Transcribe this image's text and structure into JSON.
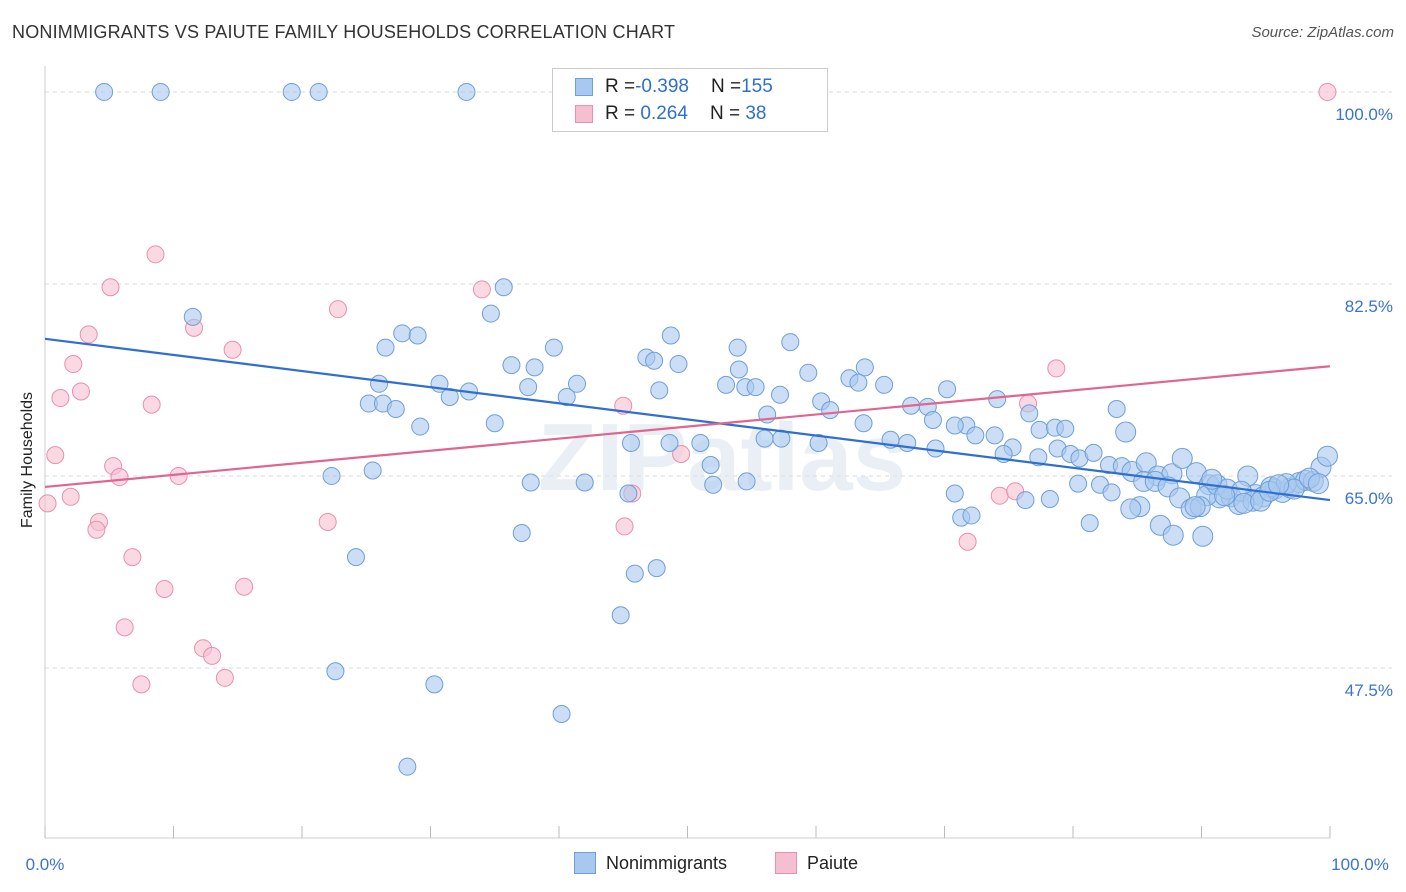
{
  "title": "NONIMMIGRANTS VS PAIUTE FAMILY HOUSEHOLDS CORRELATION CHART",
  "source": "Source: ZipAtlas.com",
  "watermark": "ZIPatlas",
  "colors": {
    "blue_fill": "#a9c8ef",
    "blue_stroke": "#6f9fd8",
    "blue_line": "#2e6fd1",
    "pink_fill": "#f6bfd0",
    "pink_stroke": "#e990ac",
    "pink_line": "#e0668f",
    "tick_text": "#3a74cf",
    "grid": "#d9d9d9"
  },
  "legend": {
    "rows": [
      {
        "r_label": "R = ",
        "r_value": "-0.398",
        "n_label": "N = ",
        "n_value": "155"
      },
      {
        "r_label": "R = ",
        "r_value": " 0.264",
        "n_label": "N = ",
        "n_value": " 38"
      }
    ],
    "series_names": [
      "Nonimmigrants",
      "Paiute"
    ]
  },
  "chart_data": {
    "type": "scatter",
    "title": "NONIMMIGRANTS VS PAIUTE FAMILY HOUSEHOLDS CORRELATION CHART",
    "xlabel": "",
    "ylabel": "Family Households",
    "xlim": [
      0,
      100
    ],
    "ylim": [
      32,
      102
    ],
    "x_tick_labels": [
      "0.0%",
      "100.0%"
    ],
    "y_ticks": [
      47.5,
      65.0,
      82.5,
      100.0
    ],
    "y_tick_labels": [
      "47.5%",
      "65.0%",
      "82.5%",
      "100.0%"
    ],
    "grid": "horizontal dashed",
    "legend_placement": "top-center",
    "series": [
      {
        "name": "Nonimmigrants",
        "r": -0.398,
        "n": 155,
        "trend": [
          [
            0,
            77.5
          ],
          [
            100,
            62.8
          ]
        ],
        "points": [
          [
            4.6,
            100
          ],
          [
            9.0,
            100
          ],
          [
            19.2,
            100
          ],
          [
            21.3,
            100
          ],
          [
            32.8,
            100
          ],
          [
            11.5,
            79.5
          ],
          [
            34.7,
            79.8
          ],
          [
            35.7,
            82.2
          ],
          [
            27.8,
            78.0
          ],
          [
            29.0,
            77.8
          ],
          [
            26.5,
            76.7
          ],
          [
            39.6,
            76.7
          ],
          [
            46.8,
            75.8
          ],
          [
            47.4,
            75.5
          ],
          [
            49.3,
            75.2
          ],
          [
            48.7,
            77.8
          ],
          [
            58.0,
            77.2
          ],
          [
            53.9,
            76.7
          ],
          [
            36.3,
            75.1
          ],
          [
            38.1,
            74.9
          ],
          [
            54.0,
            74.7
          ],
          [
            59.4,
            74.4
          ],
          [
            63.8,
            74.9
          ],
          [
            47.8,
            72.8
          ],
          [
            41.4,
            73.4
          ],
          [
            26.0,
            73.4
          ],
          [
            30.7,
            73.4
          ],
          [
            33.0,
            72.7
          ],
          [
            37.6,
            73.1
          ],
          [
            31.5,
            72.2
          ],
          [
            53.0,
            73.3
          ],
          [
            54.5,
            73.1
          ],
          [
            55.3,
            73.1
          ],
          [
            57.2,
            72.4
          ],
          [
            56.2,
            70.6
          ],
          [
            60.4,
            71.8
          ],
          [
            62.6,
            73.9
          ],
          [
            63.3,
            73.5
          ],
          [
            65.3,
            73.3
          ],
          [
            67.4,
            71.4
          ],
          [
            68.7,
            71.3
          ],
          [
            70.2,
            72.9
          ],
          [
            74.1,
            72.0
          ],
          [
            76.6,
            70.7
          ],
          [
            83.4,
            71.1
          ],
          [
            71.7,
            69.6
          ],
          [
            69.1,
            70.1
          ],
          [
            70.8,
            69.6
          ],
          [
            72.4,
            68.7
          ],
          [
            73.9,
            68.7
          ],
          [
            75.3,
            67.6
          ],
          [
            77.4,
            69.2
          ],
          [
            78.6,
            69.4
          ],
          [
            79.4,
            69.3
          ],
          [
            25.2,
            71.6
          ],
          [
            26.3,
            71.6
          ],
          [
            27.3,
            71.1
          ],
          [
            29.2,
            69.5
          ],
          [
            35.0,
            69.8
          ],
          [
            40.6,
            72.2
          ],
          [
            45.6,
            68.0
          ],
          [
            51.8,
            66.0
          ],
          [
            56.0,
            68.4
          ],
          [
            57.3,
            68.4
          ],
          [
            60.2,
            68.0
          ],
          [
            61.1,
            71.0
          ],
          [
            63.7,
            69.8
          ],
          [
            65.8,
            68.3
          ],
          [
            67.1,
            68.0
          ],
          [
            69.3,
            67.5
          ],
          [
            51.0,
            68.0
          ],
          [
            48.6,
            68.0
          ],
          [
            22.3,
            65.0
          ],
          [
            25.5,
            65.5
          ],
          [
            37.8,
            64.4
          ],
          [
            42.0,
            64.4
          ],
          [
            45.4,
            63.4
          ],
          [
            52.0,
            64.2
          ],
          [
            54.6,
            64.5
          ],
          [
            84.1,
            69.0
          ],
          [
            74.6,
            67.0
          ],
          [
            77.3,
            66.7
          ],
          [
            78.8,
            67.5
          ],
          [
            79.8,
            67.0
          ],
          [
            80.5,
            66.6
          ],
          [
            81.6,
            67.1
          ],
          [
            82.8,
            66.0
          ],
          [
            83.8,
            65.9
          ],
          [
            84.6,
            65.4
          ],
          [
            85.7,
            66.2
          ],
          [
            86.6,
            65.0
          ],
          [
            87.7,
            65.2
          ],
          [
            88.5,
            66.6
          ],
          [
            89.6,
            65.3
          ],
          [
            90.6,
            64.2
          ],
          [
            91.4,
            63.0
          ],
          [
            92.3,
            63.1
          ],
          [
            92.9,
            62.4
          ],
          [
            93.6,
            65.0
          ],
          [
            94.2,
            63.3
          ],
          [
            94.8,
            63.1
          ],
          [
            95.7,
            63.8
          ],
          [
            96.3,
            63.5
          ],
          [
            96.9,
            63.9
          ],
          [
            97.6,
            64.4
          ],
          [
            98.1,
            64.6
          ],
          [
            98.7,
            64.5
          ],
          [
            99.3,
            65.8
          ],
          [
            99.8,
            66.8
          ],
          [
            90.4,
            63.2
          ],
          [
            91.2,
            64.2
          ],
          [
            92.0,
            63.8
          ],
          [
            93.1,
            63.6
          ],
          [
            94.0,
            62.7
          ],
          [
            95.4,
            64.0
          ],
          [
            96.6,
            64.3
          ],
          [
            97.2,
            63.8
          ],
          [
            98.4,
            64.8
          ],
          [
            99.1,
            64.3
          ],
          [
            85.5,
            64.5
          ],
          [
            86.4,
            64.5
          ],
          [
            87.4,
            64.0
          ],
          [
            88.3,
            63.0
          ],
          [
            89.2,
            62.0
          ],
          [
            89.9,
            62.2
          ],
          [
            90.8,
            64.7
          ],
          [
            91.8,
            63.2
          ],
          [
            93.3,
            62.5
          ],
          [
            94.6,
            62.7
          ],
          [
            95.3,
            63.6
          ],
          [
            96.0,
            64.2
          ],
          [
            82.1,
            64.2
          ],
          [
            83.0,
            63.5
          ],
          [
            80.4,
            64.3
          ],
          [
            78.2,
            62.9
          ],
          [
            76.3,
            62.8
          ],
          [
            70.8,
            63.4
          ],
          [
            71.3,
            61.2
          ],
          [
            72.1,
            61.4
          ],
          [
            85.2,
            62.2
          ],
          [
            89.5,
            62.2
          ],
          [
            86.8,
            60.5
          ],
          [
            87.8,
            59.6
          ],
          [
            84.5,
            62.0
          ],
          [
            81.3,
            60.7
          ],
          [
            90.1,
            59.5
          ],
          [
            37.1,
            59.8
          ],
          [
            45.9,
            56.1
          ],
          [
            47.6,
            56.6
          ],
          [
            24.2,
            57.6
          ],
          [
            44.8,
            52.3
          ],
          [
            22.6,
            47.2
          ],
          [
            30.3,
            46.0
          ],
          [
            40.2,
            43.3
          ],
          [
            28.2,
            38.5
          ]
        ]
      },
      {
        "name": "Paiute",
        "r": 0.264,
        "n": 38,
        "trend": [
          [
            0,
            64.0
          ],
          [
            100,
            75.0
          ]
        ],
        "points": [
          [
            99.8,
            100
          ],
          [
            8.6,
            85.2
          ],
          [
            5.1,
            82.2
          ],
          [
            34.0,
            82.0
          ],
          [
            22.8,
            80.2
          ],
          [
            11.6,
            78.5
          ],
          [
            3.4,
            77.9
          ],
          [
            14.6,
            76.5
          ],
          [
            2.2,
            75.2
          ],
          [
            2.8,
            72.7
          ],
          [
            1.2,
            72.1
          ],
          [
            8.3,
            71.5
          ],
          [
            45.0,
            71.4
          ],
          [
            76.5,
            71.6
          ],
          [
            78.7,
            74.8
          ],
          [
            0.8,
            66.9
          ],
          [
            5.3,
            65.9
          ],
          [
            5.8,
            64.9
          ],
          [
            10.4,
            65.0
          ],
          [
            2.0,
            63.1
          ],
          [
            0.2,
            62.5
          ],
          [
            4.2,
            60.8
          ],
          [
            4.0,
            60.1
          ],
          [
            22.0,
            60.8
          ],
          [
            45.1,
            60.4
          ],
          [
            45.7,
            63.4
          ],
          [
            74.3,
            63.2
          ],
          [
            75.5,
            63.6
          ],
          [
            71.8,
            59.0
          ],
          [
            6.8,
            57.6
          ],
          [
            9.3,
            54.7
          ],
          [
            15.5,
            54.9
          ],
          [
            6.2,
            51.2
          ],
          [
            12.3,
            49.3
          ],
          [
            13.0,
            48.6
          ],
          [
            14.0,
            46.6
          ],
          [
            7.5,
            46.0
          ],
          [
            49.5,
            67.0
          ]
        ]
      }
    ]
  }
}
